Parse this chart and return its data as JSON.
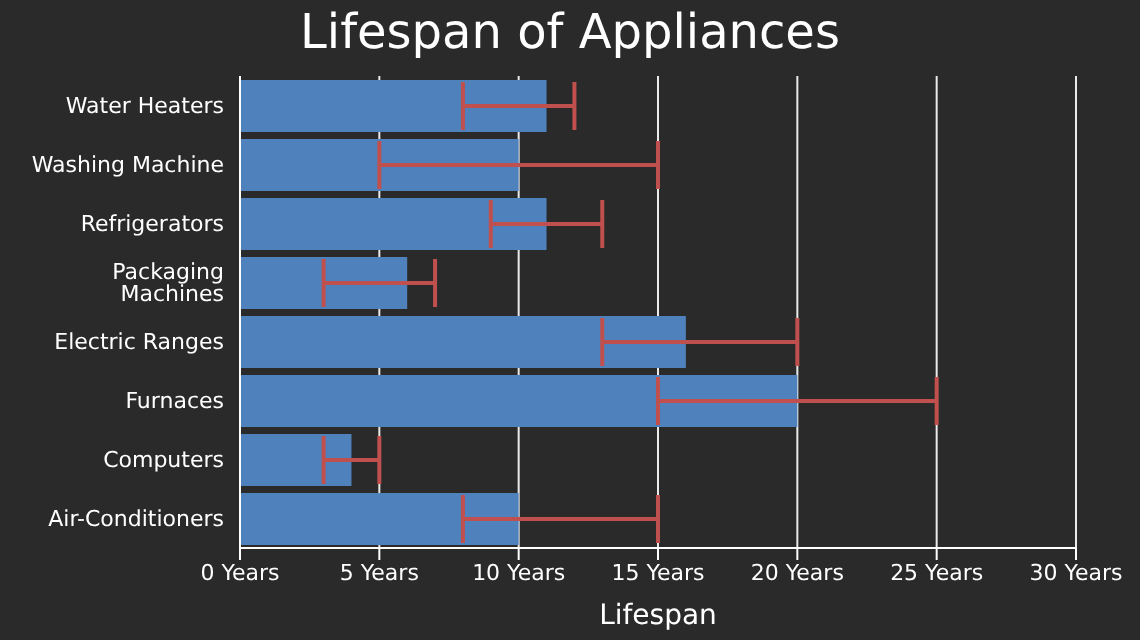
{
  "chart_data": {
    "type": "bar",
    "orientation": "horizontal",
    "title": "Lifespan of Appliances",
    "xlabel": "Lifespan",
    "categories": [
      "Water Heaters",
      "Washing Machine",
      "Refrigerators",
      "Packaging Machines",
      "Electric Ranges",
      "Furnaces",
      "Computers",
      "Air-Conditioners"
    ],
    "values": [
      11,
      10,
      11,
      6,
      16,
      20,
      4,
      10
    ],
    "errors": [
      [
        8,
        12
      ],
      [
        5,
        15
      ],
      [
        9,
        13
      ],
      [
        3,
        7
      ],
      [
        13,
        20
      ],
      [
        15,
        25
      ],
      [
        3,
        5
      ],
      [
        8,
        15
      ]
    ],
    "color": "#4f81bc",
    "xlim": [
      0,
      30
    ],
    "xticks": [
      {
        "value": 0,
        "label": "0 Years"
      },
      {
        "value": 5,
        "label": "5 Years"
      },
      {
        "value": 10,
        "label": "10 Years"
      },
      {
        "value": 15,
        "label": "15 Years"
      },
      {
        "value": 20,
        "label": "20 Years"
      },
      {
        "value": 25,
        "label": "25 Years"
      },
      {
        "value": 30,
        "label": "30 Years"
      }
    ],
    "grid": "x",
    "legend": false
  }
}
